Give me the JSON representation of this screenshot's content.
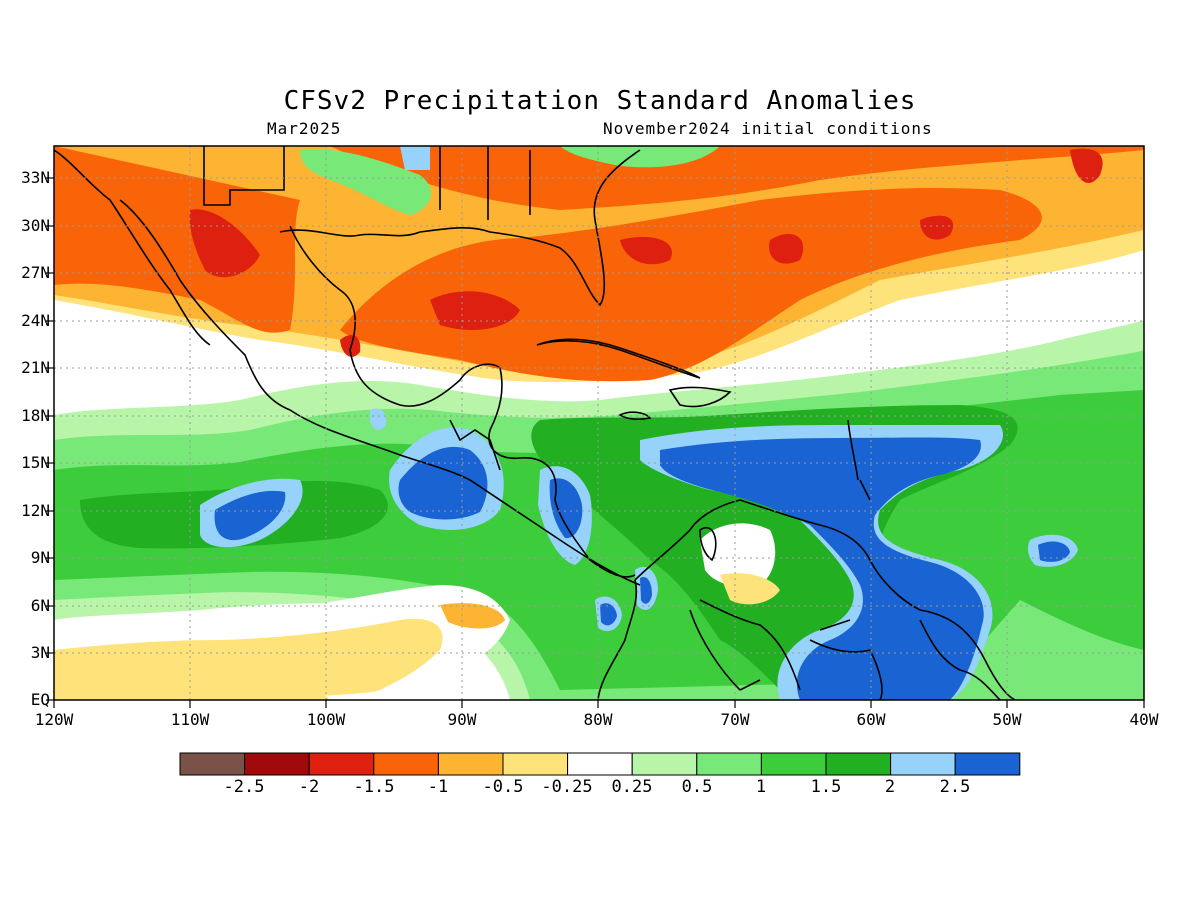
{
  "header": {
    "title": "CFSv2 Precipitation Standard Anomalies",
    "valid_month": "Mar2025",
    "initial_conditions": "November2024 initial conditions"
  },
  "map": {
    "lat_labels": [
      "33N",
      "30N",
      "27N",
      "24N",
      "21N",
      "18N",
      "15N",
      "12N",
      "9N",
      "6N",
      "3N",
      "EQ"
    ],
    "lon_labels": [
      "120W",
      "110W",
      "100W",
      "90W",
      "80W",
      "70W",
      "60W",
      "50W",
      "40W"
    ]
  },
  "legend": {
    "values": [
      "-2.5",
      "-2",
      "-1.5",
      "-1",
      "-0.5",
      "-0.25",
      "0.25",
      "0.5",
      "1",
      "1.5",
      "2",
      "2.5"
    ],
    "colors": [
      "#7a5248",
      "#a00a0a",
      "#dd2010",
      "#fa6408",
      "#fdb432",
      "#fde37a",
      "#ffffff",
      "#b8f5a8",
      "#78e878",
      "#3ccc3c",
      "#22b022",
      "#96d2fa",
      "#1964d2"
    ]
  }
}
